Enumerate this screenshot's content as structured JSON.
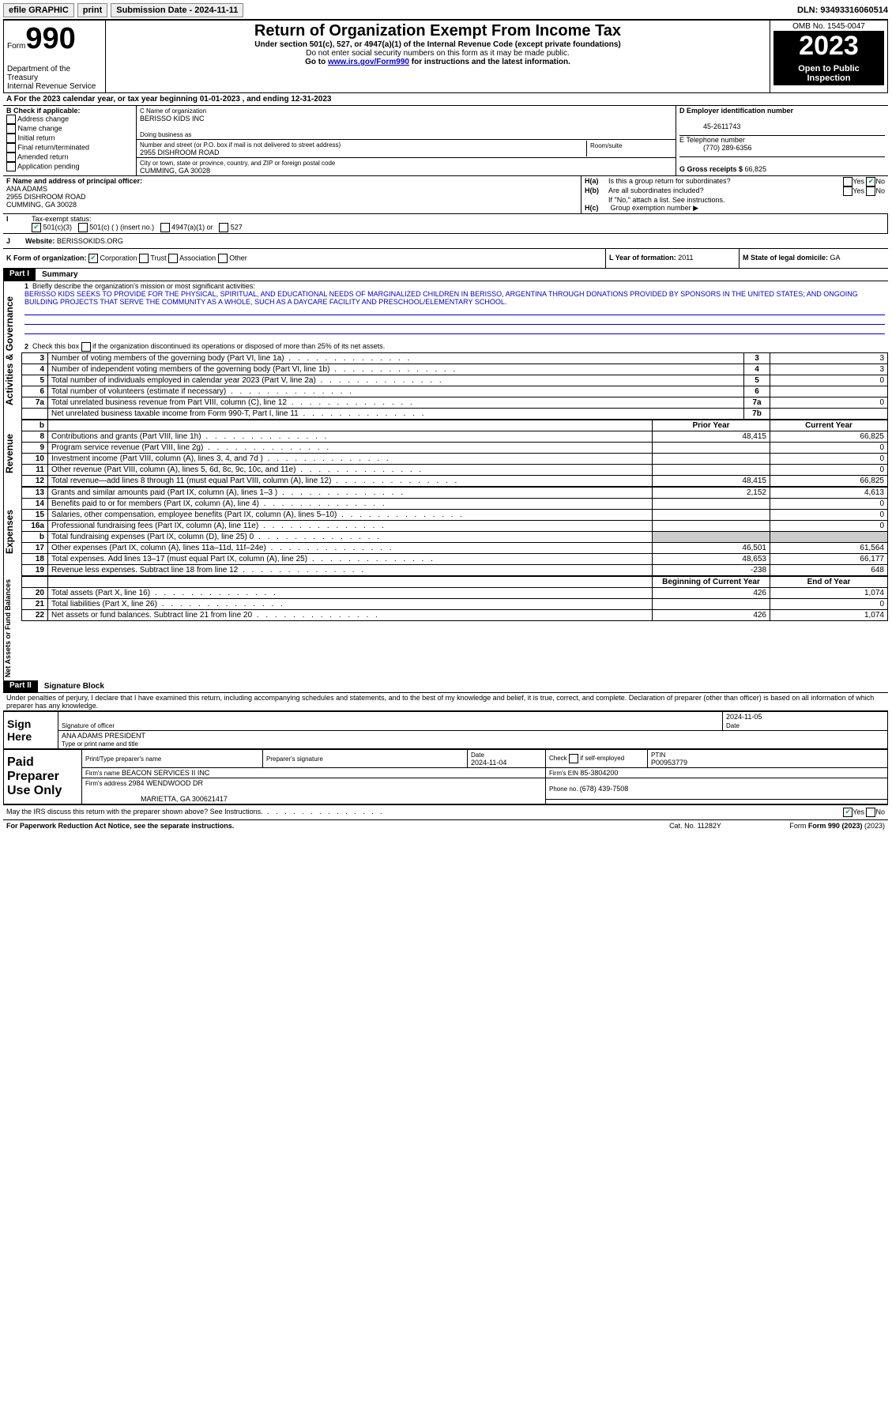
{
  "topbar": {
    "efile": "efile GRAPHIC",
    "print": "print",
    "sub_label": "Submission Date - ",
    "sub_date": "2024-11-11",
    "dln": "DLN: 93493316060514"
  },
  "header": {
    "form": "Form",
    "num": "990",
    "dept": "Department of the Treasury",
    "irs": "Internal Revenue Service",
    "title": "Return of Organization Exempt From Income Tax",
    "subtitle": "Under section 501(c), 527, or 4947(a)(1) of the Internal Revenue Code (except private foundations)",
    "ssn": "Do not enter social security numbers on this form as it may be made public.",
    "goto": "Go to ",
    "link": "www.irs.gov/Form990",
    "goto2": " for instructions and the latest information.",
    "omb": "OMB No. 1545-0047",
    "year": "2023",
    "open": "Open to Public Inspection"
  },
  "section_a": {
    "line": "A For the 2023 calendar year, or tax year beginning ",
    "begin": "01-01-2023",
    "mid": " , and ending ",
    "end": "12-31-2023"
  },
  "section_b": {
    "title": "B Check if applicable:",
    "opts": [
      "Address change",
      "Name change",
      "Initial return",
      "Final return/terminated",
      "Amended return",
      "Application pending"
    ]
  },
  "section_c": {
    "name_lbl": "C Name of organization",
    "name": "BERISSO KIDS INC",
    "dba_lbl": "Doing business as",
    "addr_lbl": "Number and street (or P.O. box if mail is not delivered to street address)",
    "addr": "2955 DISHROOM ROAD",
    "room_lbl": "Room/suite",
    "city_lbl": "City or town, state or province, country, and ZIP or foreign postal code",
    "city": "CUMMING, GA  30028"
  },
  "section_d": {
    "ein_lbl": "D Employer identification number",
    "ein": "45-2611743",
    "tel_lbl": "E Telephone number",
    "tel": "(770) 289-6356",
    "gross_lbl": "G Gross receipts $ ",
    "gross": "66,825"
  },
  "section_f": {
    "lbl": "F Name and address of principal officer:",
    "name": "ANA ADAMS",
    "addr1": "2955 DISHROOM ROAD",
    "addr2": "CUMMING, GA  30028"
  },
  "section_h": {
    "ha": "H(a)",
    "ha_txt": "Is this a group return for subordinates?",
    "hb": "H(b)",
    "hb_txt": "Are all subordinates included?",
    "note": "If \"No,\" attach a list. See instructions.",
    "hc": "H(c)",
    "hc_txt": "Group exemption number ",
    "yes": "Yes",
    "no": "No"
  },
  "section_i": {
    "lbl": "I",
    "txt": "Tax-exempt status:",
    "opts": [
      "501(c)(3)",
      "501(c) (  ) (insert no.)",
      "4947(a)(1) or",
      "527"
    ]
  },
  "section_j": {
    "lbl": "J",
    "txt": "Website: ",
    "val": "BERISSOKIDS.ORG"
  },
  "section_k": {
    "lbl": "K Form of organization:",
    "opts": [
      "Corporation",
      "Trust",
      "Association",
      "Other"
    ]
  },
  "section_l": {
    "txt": "L Year of formation: ",
    "val": "2011"
  },
  "section_m": {
    "txt": "M State of legal domicile: ",
    "val": "GA"
  },
  "part1": {
    "hdr": "Part I",
    "title": "Summary",
    "q1_lbl": "1",
    "q1": "Briefly describe the organization's mission or most significant activities:",
    "mission": "BERISSO KIDS SEEKS TO PROVIDE FOR THE PHYSICAL, SPIRITUAL, AND EDUCATIONAL NEEDS OF MARGINALIZED CHILDREN IN BERISSO, ARGENTINA THROUGH DONATIONS PROVIDED BY SPONSORS IN THE UNITED STATES; AND ONGOING BUILDING PROJECTS THAT SERVE THE COMMUNITY AS A WHOLE, SUCH AS A DAYCARE FACILITY AND PRESCHOOL/ELEMENTARY SCHOOL.",
    "q2_lbl": "2",
    "q2": "Check this box    if the organization discontinued its operations or disposed of more than 25% of its net assets.",
    "gov_label": "Activities & Governance",
    "rev_label": "Revenue",
    "exp_label": "Expenses",
    "net_label": "Net Assets or Fund Balances",
    "lines_gov": [
      {
        "n": "3",
        "txt": "Number of voting members of the governing body (Part VI, line 1a)",
        "box": "3",
        "val": "3"
      },
      {
        "n": "4",
        "txt": "Number of independent voting members of the governing body (Part VI, line 1b)",
        "box": "4",
        "val": "3"
      },
      {
        "n": "5",
        "txt": "Total number of individuals employed in calendar year 2023 (Part V, line 2a)",
        "box": "5",
        "val": "0"
      },
      {
        "n": "6",
        "txt": "Total number of volunteers (estimate if necessary)",
        "box": "6",
        "val": ""
      },
      {
        "n": "7a",
        "txt": "Total unrelated business revenue from Part VIII, column (C), line 12",
        "box": "7a",
        "val": "0"
      },
      {
        "n": "",
        "txt": "Net unrelated business taxable income from Form 990-T, Part I, line 11",
        "box": "7b",
        "val": ""
      }
    ],
    "col_b": "b",
    "col_prior": "Prior Year",
    "col_current": "Current Year",
    "lines_rev": [
      {
        "n": "8",
        "txt": "Contributions and grants (Part VIII, line 1h)",
        "p": "48,415",
        "c": "66,825"
      },
      {
        "n": "9",
        "txt": "Program service revenue (Part VIII, line 2g)",
        "p": "",
        "c": "0"
      },
      {
        "n": "10",
        "txt": "Investment income (Part VIII, column (A), lines 3, 4, and 7d )",
        "p": "",
        "c": "0"
      },
      {
        "n": "11",
        "txt": "Other revenue (Part VIII, column (A), lines 5, 6d, 8c, 9c, 10c, and 11e)",
        "p": "",
        "c": "0"
      },
      {
        "n": "12",
        "txt": "Total revenue—add lines 8 through 11 (must equal Part VIII, column (A), line 12)",
        "p": "48,415",
        "c": "66,825"
      }
    ],
    "lines_exp": [
      {
        "n": "13",
        "txt": "Grants and similar amounts paid (Part IX, column (A), lines 1–3 )",
        "p": "2,152",
        "c": "4,613"
      },
      {
        "n": "14",
        "txt": "Benefits paid to or for members (Part IX, column (A), line 4)",
        "p": "",
        "c": "0"
      },
      {
        "n": "15",
        "txt": "Salaries, other compensation, employee benefits (Part IX, column (A), lines 5–10)",
        "p": "",
        "c": "0"
      },
      {
        "n": "16a",
        "txt": "Professional fundraising fees (Part IX, column (A), line 11e)",
        "p": "",
        "c": "0"
      },
      {
        "n": "b",
        "txt": "Total fundraising expenses (Part IX, column (D), line 25) 0",
        "p": "__GREY__",
        "c": "__GREY__"
      },
      {
        "n": "17",
        "txt": "Other expenses (Part IX, column (A), lines 11a–11d, 11f–24e)",
        "p": "46,501",
        "c": "61,564"
      },
      {
        "n": "18",
        "txt": "Total expenses. Add lines 13–17 (must equal Part IX, column (A), line 25)",
        "p": "48,653",
        "c": "66,177"
      },
      {
        "n": "19",
        "txt": "Revenue less expenses. Subtract line 18 from line 12",
        "p": "-238",
        "c": "648"
      }
    ],
    "col_begin": "Beginning of Current Year",
    "col_end": "End of Year",
    "lines_net": [
      {
        "n": "20",
        "txt": "Total assets (Part X, line 16)",
        "p": "426",
        "c": "1,074"
      },
      {
        "n": "21",
        "txt": "Total liabilities (Part X, line 26)",
        "p": "",
        "c": "0"
      },
      {
        "n": "22",
        "txt": "Net assets or fund balances. Subtract line 21 from line 20",
        "p": "426",
        "c": "1,074"
      }
    ]
  },
  "part2": {
    "hdr": "Part II",
    "title": "Signature Block",
    "perjury": "Under penalties of perjury, I declare that I have examined this return, including accompanying schedules and statements, and to the best of my knowledge and belief, it is true, correct, and complete. Declaration of preparer (other than officer) is based on all information of which preparer has any knowledge.",
    "sign_here": "Sign Here",
    "sig_officer": "Signature of officer",
    "date_lbl": "Date",
    "officer_date": "2024-11-05",
    "officer_name": "ANA ADAMS PRESIDENT",
    "type_name": "Type or print name and title",
    "paid_lbl": "Paid Preparer Use Only",
    "prep_name_lbl": "Print/Type preparer's name",
    "prep_sig_lbl": "Preparer's signature",
    "prep_date_lbl": "Date",
    "prep_date": "2024-11-04",
    "check_self": "Check     if self-employed",
    "ptin_lbl": "PTIN",
    "ptin": "P00953779",
    "firm_name_lbl": "Firm's name  ",
    "firm_name": "BEACON SERVICES II INC",
    "firm_ein_lbl": "Firm's EIN  ",
    "firm_ein": "85-3804200",
    "firm_addr_lbl": "Firm's address ",
    "firm_addr1": "2984 WENDWOOD DR",
    "firm_addr2": "MARIETTA, GA  300621417",
    "phone_lbl": "Phone no. ",
    "phone": "(678) 439-7508",
    "discuss": "May the IRS discuss this return with the preparer shown above? See Instructions."
  },
  "footer": {
    "paperwork": "For Paperwork Reduction Act Notice, see the separate instructions.",
    "cat": "Cat. No. 11282Y",
    "form": "Form 990 (2023)"
  },
  "colors": {
    "link": "#0000cc",
    "check": "#00aa55"
  }
}
